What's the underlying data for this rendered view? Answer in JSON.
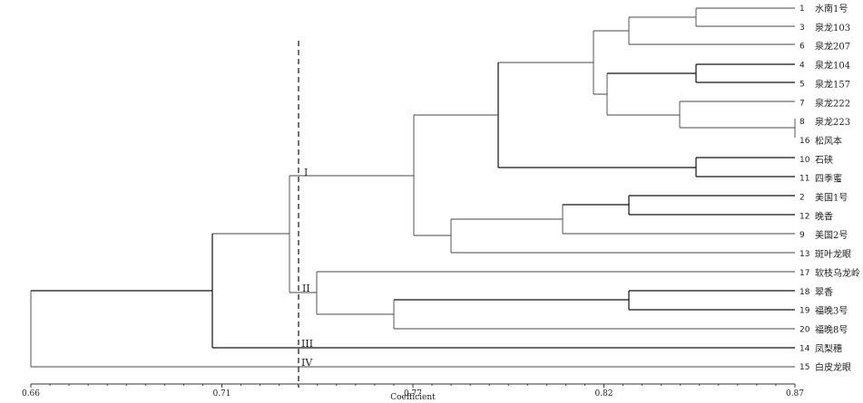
{
  "diagram": {
    "leaves": [
      {
        "num": "1",
        "label": "水南1号"
      },
      {
        "num": "3",
        "label": "泉龙103"
      },
      {
        "num": "6",
        "label": "泉龙207"
      },
      {
        "num": "4",
        "label": "泉龙104"
      },
      {
        "num": "5",
        "label": "泉龙157"
      },
      {
        "num": "7",
        "label": "泉龙222"
      },
      {
        "num": "8",
        "label": "泉龙223"
      },
      {
        "num": "16",
        "label": "松风本"
      },
      {
        "num": "10",
        "label": "石硖"
      },
      {
        "num": "11",
        "label": "四季蜜"
      },
      {
        "num": "2",
        "label": "美国1号"
      },
      {
        "num": "12",
        "label": "晚香"
      },
      {
        "num": "9",
        "label": "美国2号"
      },
      {
        "num": "13",
        "label": "斑叶龙眼"
      },
      {
        "num": "17",
        "label": "软枝乌龙岭"
      },
      {
        "num": "18",
        "label": "翠香"
      },
      {
        "num": "19",
        "label": "福晚3号"
      },
      {
        "num": "20",
        "label": "福晚8号"
      },
      {
        "num": "14",
        "label": "凤梨穗"
      },
      {
        "num": "15",
        "label": "白皮龙眼"
      }
    ],
    "groups": [
      "I",
      "II",
      "III",
      "IV"
    ],
    "axis": {
      "label": "Coefficient",
      "ticks": [
        "0.66",
        "0.71",
        "0.77",
        "0.82",
        "0.87"
      ],
      "min": 0.66,
      "max": 0.87
    },
    "cutoff": 0.73
  }
}
